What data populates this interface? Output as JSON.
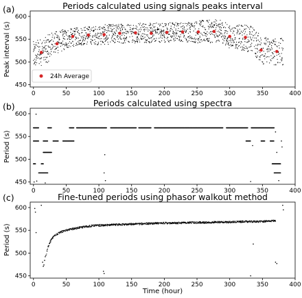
{
  "chart_data": [
    {
      "type": "scatter",
      "panel_label": "(a)",
      "title": "Periods calculated using signals peaks interval",
      "xlabel": "",
      "ylabel": "Peak interval (s)",
      "xlim": [
        -5,
        400
      ],
      "ylim": [
        445,
        612
      ],
      "xticks": [
        0,
        50,
        100,
        150,
        200,
        250,
        300,
        350,
        400
      ],
      "yticks": [
        450,
        500,
        550,
        600
      ],
      "legend": {
        "position": "bottom-left",
        "entries": [
          "24h Average"
        ]
      },
      "grid": false,
      "series": [
        {
          "name": "24h Average",
          "color": "#d62728",
          "x": [
            12,
            36,
            60,
            84,
            108,
            132,
            156,
            180,
            204,
            228,
            252,
            276,
            300,
            324,
            348,
            372
          ],
          "y": [
            521,
            540,
            556,
            559,
            560,
            563,
            564,
            563,
            565,
            566,
            566,
            567,
            556,
            554,
            526,
            523
          ]
        }
      ],
      "raw_points_shape": {
        "x": [
          0,
          5,
          10,
          15,
          20,
          25,
          30,
          40,
          50,
          60,
          70,
          80,
          90,
          100,
          110,
          120,
          130,
          140,
          150,
          160,
          170,
          180,
          190,
          200,
          210,
          220,
          230,
          240,
          250,
          260,
          270,
          280,
          290,
          300,
          310,
          320,
          330,
          340,
          350,
          360,
          370,
          380
        ],
        "center": [
          515,
          518,
          522,
          522,
          525,
          535,
          540,
          545,
          550,
          554,
          556,
          558,
          559,
          559,
          560,
          561,
          562,
          563,
          563,
          564,
          564,
          563,
          565,
          565,
          566,
          566,
          566,
          566,
          566,
          567,
          567,
          568,
          566,
          555,
          555,
          553,
          553,
          540,
          525,
          525,
          522,
          522
        ],
        "spread": [
          30,
          30,
          30,
          30,
          30,
          30,
          25,
          25,
          22,
          20,
          20,
          20,
          20,
          22,
          22,
          22,
          22,
          22,
          22,
          22,
          22,
          22,
          22,
          22,
          22,
          22,
          22,
          22,
          25,
          25,
          25,
          25,
          25,
          25,
          25,
          30,
          30,
          30,
          30,
          30,
          30,
          30
        ]
      }
    },
    {
      "type": "scatter",
      "panel_label": "(b)",
      "title": "Periods calculated using spectra",
      "xlabel": "",
      "ylabel": "Period (s)",
      "xlim": [
        -5,
        400
      ],
      "ylim": [
        445,
        612
      ],
      "xticks": [
        0,
        50,
        100,
        150,
        200,
        250,
        300,
        350,
        400
      ],
      "yticks": [
        450,
        500,
        550,
        600
      ],
      "grid": false,
      "series": [
        {
          "name": "",
          "color": "#000000",
          "segments": [
            {
              "x0": 0,
              "x1": 8,
              "y": 569
            },
            {
              "x0": 22,
              "x1": 28,
              "y": 569
            },
            {
              "x0": 55,
              "x1": 62,
              "y": 569
            },
            {
              "x0": 66,
              "x1": 112,
              "y": 569
            },
            {
              "x0": 118,
              "x1": 157,
              "y": 569
            },
            {
              "x0": 161,
              "x1": 180,
              "y": 569
            },
            {
              "x0": 185,
              "x1": 290,
              "y": 569
            },
            {
              "x0": 295,
              "x1": 328,
              "y": 569
            },
            {
              "x0": 333,
              "x1": 368,
              "y": 569
            },
            {
              "x0": 0,
              "x1": 8,
              "y": 540
            },
            {
              "x0": 15,
              "x1": 22,
              "y": 540
            },
            {
              "x0": 30,
              "x1": 38,
              "y": 540
            },
            {
              "x0": 45,
              "x1": 62,
              "y": 540
            },
            {
              "x0": 325,
              "x1": 332,
              "y": 540
            },
            {
              "x0": 348,
              "x1": 354,
              "y": 540
            },
            {
              "x0": 362,
              "x1": 368,
              "y": 540
            },
            {
              "x0": 15,
              "x1": 28,
              "y": 515
            },
            {
              "x0": 0,
              "x1": 3,
              "y": 490
            },
            {
              "x0": 12,
              "x1": 15,
              "y": 490
            },
            {
              "x0": 365,
              "x1": 378,
              "y": 490
            },
            {
              "x0": 8,
              "x1": 22,
              "y": 470
            },
            {
              "x0": 368,
              "x1": 378,
              "y": 470
            }
          ],
          "points": {
            "x": [
              1,
              5,
              18,
              4,
              108,
              110,
              109,
              332,
              375,
              372,
              335,
              380,
              370,
              379
            ],
            "y": [
              450,
              452,
              448,
              599,
              470,
              453,
              510,
              451,
              453,
              515,
              530,
              527,
              560,
              540
            ]
          }
        }
      ]
    },
    {
      "type": "scatter",
      "panel_label": "(c)",
      "title": "Fine-tuned periods using phasor walkout method",
      "xlabel": "Time (hour)",
      "ylabel": "Period (s)",
      "xlim": [
        -5,
        400
      ],
      "ylim": [
        445,
        612
      ],
      "xticks": [
        0,
        50,
        100,
        150,
        200,
        250,
        300,
        350,
        400
      ],
      "yticks": [
        450,
        500,
        550,
        600
      ],
      "grid": false,
      "series": [
        {
          "name": "",
          "color": "#000000",
          "trend": {
            "x": [
              20,
              22,
              24,
              26,
              28,
              30,
              32,
              35,
              40,
              45,
              50,
              60,
              70,
              80,
              90,
              100,
              110,
              120,
              140,
              160,
              180,
              200,
              220,
              240,
              260,
              280,
              300,
              320,
              340,
              360,
              370
            ],
            "y": [
              500,
              512,
              520,
              526,
              531,
              535,
              538,
              541,
              545,
              548,
              550,
              553,
              556,
              558,
              560,
              561,
              561,
              562,
              563,
              564,
              565,
              566,
              566,
              567,
              567,
              568,
              568,
              569,
              569,
              570,
              571
            ]
          },
          "outliers": {
            "x": [
              2,
              3,
              4,
              12,
              14,
              16,
              17,
              15,
              18,
              19,
              107,
              108,
              370,
              372,
              381,
              382,
              332,
              336
            ],
            "y": [
              598,
              590,
              545,
              605,
              480,
              474,
              484,
              471,
              492,
              495,
              460,
              455,
              480,
              477,
              605,
              595,
              450,
              520
            ]
          }
        }
      ]
    }
  ]
}
